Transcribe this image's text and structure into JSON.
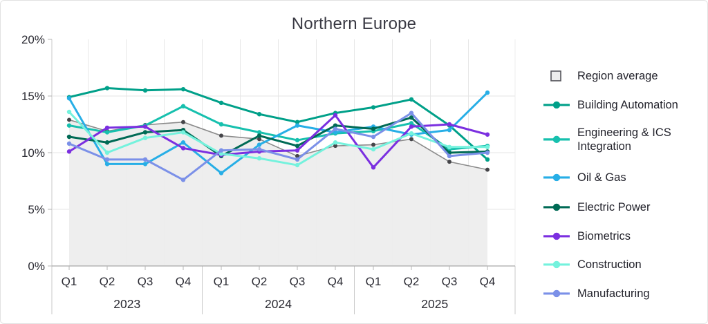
{
  "chart_data": {
    "type": "line",
    "title": "Northern Europe",
    "legend_position": "right",
    "grid": true,
    "ylim": [
      0,
      20
    ],
    "y_ticks": [
      {
        "label": "0%",
        "value": 0
      },
      {
        "label": "5%",
        "value": 5
      },
      {
        "label": "10%",
        "value": 10
      },
      {
        "label": "15%",
        "value": 15
      },
      {
        "label": "20%",
        "value": 20
      }
    ],
    "x_axis": {
      "quarters": [
        "Q1",
        "Q2",
        "Q3",
        "Q4",
        "Q1",
        "Q2",
        "Q3",
        "Q4",
        "Q1",
        "Q2",
        "Q3",
        "Q4"
      ],
      "years": [
        "2023",
        "2024",
        "2025"
      ]
    },
    "region_average": {
      "label": "Region average",
      "fill_color": "#ededed",
      "line_color": "#8b8b8b",
      "dot_color": "#454549",
      "values": [
        12.9,
        11.9,
        12.45,
        12.7,
        11.5,
        11.2,
        9.7,
        10.6,
        10.7,
        11.2,
        9.2,
        8.5
      ]
    },
    "series": [
      {
        "name": "Building Automation",
        "color": "#00a089",
        "values": [
          14.9,
          15.7,
          15.5,
          15.6,
          14.4,
          13.4,
          12.7,
          13.5,
          14.0,
          14.7,
          12.4,
          9.4
        ]
      },
      {
        "name": "Engineering & ICS Integration",
        "color": "#17c0ae",
        "values": [
          12.4,
          11.8,
          12.4,
          14.1,
          12.5,
          11.8,
          11.1,
          11.7,
          11.9,
          12.6,
          10.3,
          10.6
        ]
      },
      {
        "name": "Oil & Gas",
        "color": "#27aee6",
        "values": [
          14.8,
          9.0,
          9.0,
          10.9,
          8.2,
          10.7,
          12.4,
          11.8,
          12.3,
          11.6,
          12.0,
          15.3
        ]
      },
      {
        "name": "Electric Power",
        "color": "#006a55",
        "values": [
          11.4,
          10.9,
          11.8,
          12.0,
          9.7,
          11.5,
          10.6,
          12.4,
          12.1,
          13.1,
          10.0,
          10.1
        ]
      },
      {
        "name": "Biometrics",
        "color": "#7b2fe0",
        "values": [
          10.1,
          12.2,
          12.3,
          10.4,
          9.8,
          10.1,
          10.2,
          13.3,
          8.7,
          12.3,
          12.5,
          11.6
        ]
      },
      {
        "name": "Construction",
        "color": "#74f2dd",
        "values": [
          13.6,
          10.0,
          11.3,
          11.8,
          9.9,
          9.5,
          8.9,
          10.9,
          10.3,
          11.7,
          10.5,
          10.5
        ]
      },
      {
        "name": "Manufacturing",
        "color": "#7b90e8",
        "values": [
          10.8,
          9.4,
          9.4,
          7.6,
          10.2,
          10.3,
          9.4,
          12.1,
          11.4,
          13.5,
          9.7,
          10.0
        ]
      }
    ]
  }
}
